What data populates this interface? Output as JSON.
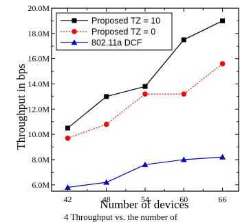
{
  "chart_data": {
    "type": "line",
    "xlabel": "Number of devices",
    "ylabel": "Throughput in bps",
    "categories": [
      "42",
      "48",
      "54",
      "60",
      "66"
    ],
    "x": [
      42,
      48,
      54,
      60,
      66
    ],
    "xlim": [
      39.5,
      68.5
    ],
    "ylim": [
      5.5,
      20
    ],
    "yticks": [
      6,
      8,
      10,
      12,
      14,
      16,
      18,
      20
    ],
    "ytick_labels": [
      "6.0M",
      "8.0M",
      "10.0M",
      "12.0M",
      "14.0M",
      "16.0M",
      "18.0M",
      "20.0M"
    ],
    "legend_position": "top-left",
    "series": [
      {
        "name": "Proposed TZ = 10",
        "values": [
          10.5,
          13.0,
          13.8,
          17.5,
          19.0
        ],
        "color": "#000000",
        "marker": "square",
        "dash": "solid"
      },
      {
        "name": "Proposed TZ = 0",
        "values": [
          9.7,
          10.8,
          13.2,
          13.2,
          15.6
        ],
        "color": "#ff0000",
        "marker": "circle",
        "dash": "dotted"
      },
      {
        "name": "802.11a DCF",
        "values": [
          5.8,
          6.2,
          7.6,
          8.0,
          8.2
        ],
        "color": "#0000cc",
        "marker": "triangle",
        "dash": "solid"
      }
    ]
  },
  "caption": "4 Throughput vs. the number of "
}
